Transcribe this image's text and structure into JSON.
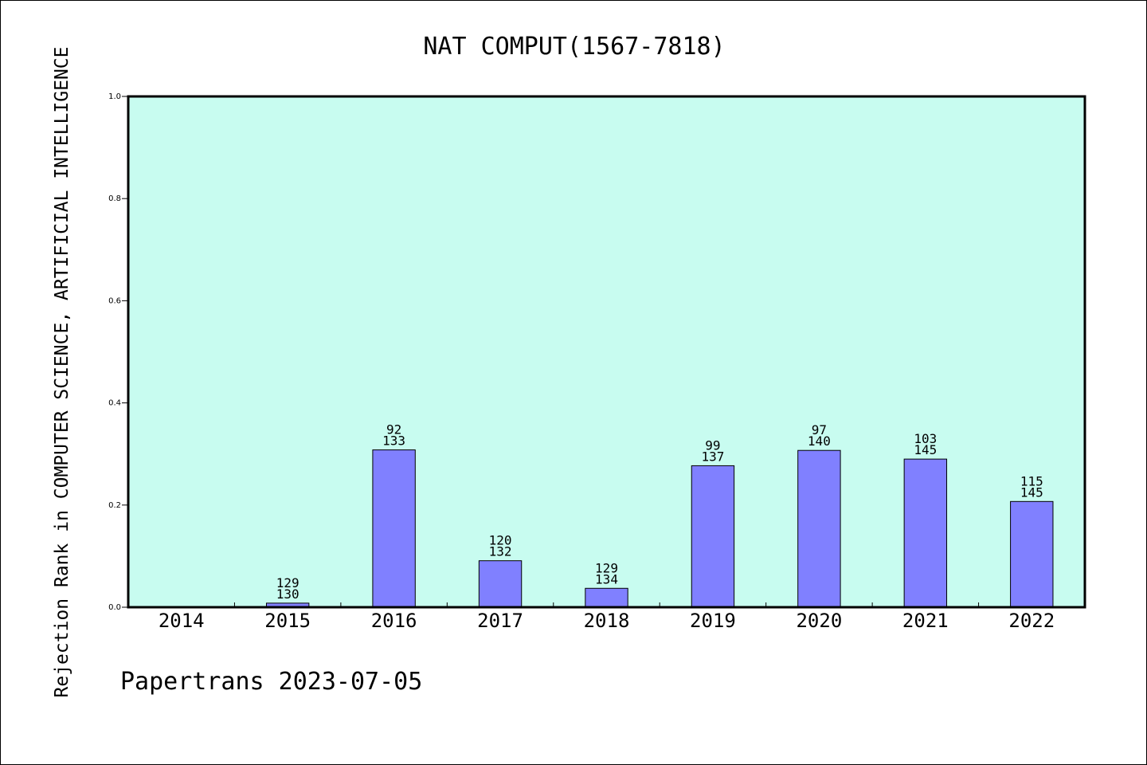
{
  "chart_data": {
    "type": "bar",
    "title": "NAT COMPUT(1567-7818)",
    "ylabel": "Rejection Rank in COMPUTER SCIENCE, ARTIFICIAL INTELLIGENCE",
    "xlabel": "",
    "ylim": [
      0,
      1.0
    ],
    "yticks": [
      "0.0",
      "0.2",
      "0.4",
      "0.6",
      "0.8",
      "1.0"
    ],
    "categories": [
      "2014",
      "2015",
      "2016",
      "2017",
      "2018",
      "2019",
      "2020",
      "2021",
      "2022"
    ],
    "values": [
      null,
      0.008,
      0.308,
      0.091,
      0.037,
      0.277,
      0.307,
      0.29,
      0.207
    ],
    "rank_labels": [
      [
        "",
        ""
      ],
      [
        "129",
        "130"
      ],
      [
        "92",
        "133"
      ],
      [
        "120",
        "132"
      ],
      [
        "129",
        "134"
      ],
      [
        "99",
        "137"
      ],
      [
        "97",
        "140"
      ],
      [
        "103",
        "145"
      ],
      [
        "115",
        "145"
      ]
    ],
    "bar_color": "#8080ff",
    "plot_background": "#c8fcf0",
    "grid": false,
    "legend": "none"
  },
  "footer": "Papertrans 2023-07-05"
}
